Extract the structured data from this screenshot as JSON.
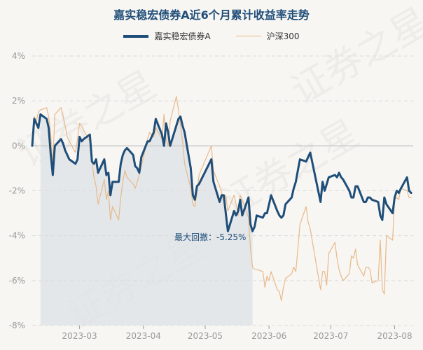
{
  "chart_data": {
    "type": "line",
    "title": "嘉实稳宏债券A近6个月累计收益率走势",
    "xlabel": "",
    "ylabel": "",
    "ylim": [
      -8,
      4
    ],
    "yticks": [
      4,
      2,
      0,
      -2,
      -4,
      -6,
      -8
    ],
    "ytick_labels": [
      "4%",
      "2%",
      "0%",
      "-2%",
      "-4%",
      "-6%",
      "-8%"
    ],
    "xlim": [
      "2023-02-06",
      "2023-08-10"
    ],
    "xticks": [
      "2023-03-01",
      "2023-04-01",
      "2023-05-01",
      "2023-06-01",
      "2023-07-01",
      "2023-08-01"
    ],
    "xtick_labels": [
      "2023-03",
      "2023-04",
      "2023-05",
      "2023-06",
      "2023-07",
      "2023-08"
    ],
    "grid": true,
    "legend_position": "top-center",
    "watermark": "证券之星",
    "series": [
      {
        "name": "嘉实稳宏债券A",
        "color": "#1f4e79",
        "points": [
          [
            "2023-02-06",
            0.0
          ],
          [
            "2023-02-07",
            1.2
          ],
          [
            "2023-02-08",
            1.0
          ],
          [
            "2023-02-09",
            0.8
          ],
          [
            "2023-02-10",
            1.4
          ],
          [
            "2023-02-13",
            1.2
          ],
          [
            "2023-02-14",
            0.8
          ],
          [
            "2023-02-15",
            -0.4
          ],
          [
            "2023-02-16",
            -1.3
          ],
          [
            "2023-02-17",
            0.0
          ],
          [
            "2023-02-20",
            0.3
          ],
          [
            "2023-02-21",
            0.1
          ],
          [
            "2023-02-22",
            -0.2
          ],
          [
            "2023-02-23",
            -0.4
          ],
          [
            "2023-02-24",
            -0.6
          ],
          [
            "2023-02-27",
            -0.8
          ],
          [
            "2023-02-28",
            -0.6
          ],
          [
            "2023-03-01",
            0.4
          ],
          [
            "2023-03-02",
            0.2
          ],
          [
            "2023-03-03",
            0.3
          ],
          [
            "2023-03-06",
            0.5
          ],
          [
            "2023-03-07",
            -0.7
          ],
          [
            "2023-03-08",
            -0.8
          ],
          [
            "2023-03-09",
            -0.6
          ],
          [
            "2023-03-10",
            -1.2
          ],
          [
            "2023-03-13",
            -0.6
          ],
          [
            "2023-03-14",
            -1.3
          ],
          [
            "2023-03-15",
            -1.2
          ],
          [
            "2023-03-16",
            -2.2
          ],
          [
            "2023-03-17",
            -1.6
          ],
          [
            "2023-03-20",
            -1.6
          ],
          [
            "2023-03-21",
            -0.8
          ],
          [
            "2023-03-22",
            -0.4
          ],
          [
            "2023-03-23",
            -0.2
          ],
          [
            "2023-03-24",
            -0.1
          ],
          [
            "2023-03-27",
            -0.4
          ],
          [
            "2023-03-28",
            -0.9
          ],
          [
            "2023-03-29",
            -1.0
          ],
          [
            "2023-03-30",
            -1.2
          ],
          [
            "2023-03-31",
            -0.5
          ],
          [
            "2023-04-03",
            0.2
          ],
          [
            "2023-04-04",
            0.2
          ],
          [
            "2023-04-06",
            0.6
          ],
          [
            "2023-04-07",
            1.2
          ],
          [
            "2023-04-10",
            0.5
          ],
          [
            "2023-04-11",
            0.0
          ],
          [
            "2023-04-12",
            1.0
          ],
          [
            "2023-04-13",
            0.6
          ],
          [
            "2023-04-14",
            0.0
          ],
          [
            "2023-04-17",
            0.9
          ],
          [
            "2023-04-18",
            1.2
          ],
          [
            "2023-04-19",
            1.3
          ],
          [
            "2023-04-20",
            0.9
          ],
          [
            "2023-04-21",
            0.6
          ],
          [
            "2023-04-24",
            -1.0
          ],
          [
            "2023-04-25",
            -2.2
          ],
          [
            "2023-04-26",
            -2.4
          ],
          [
            "2023-04-27",
            -1.8
          ],
          [
            "2023-04-28",
            -1.7
          ],
          [
            "2023-05-04",
            -0.6
          ],
          [
            "2023-05-05",
            -1.6
          ],
          [
            "2023-05-08",
            -2.5
          ],
          [
            "2023-05-09",
            -2.2
          ],
          [
            "2023-05-10",
            -2.2
          ],
          [
            "2023-05-11",
            -3.0
          ],
          [
            "2023-05-12",
            -3.8
          ],
          [
            "2023-05-15",
            -2.9
          ],
          [
            "2023-05-16",
            -3.1
          ],
          [
            "2023-05-17",
            -2.9
          ],
          [
            "2023-05-18",
            -2.4
          ],
          [
            "2023-05-19",
            -3.1
          ],
          [
            "2023-05-22",
            -2.3
          ],
          [
            "2023-05-23",
            -3.5
          ],
          [
            "2023-05-24",
            -3.8
          ],
          [
            "2023-05-25",
            -3.6
          ],
          [
            "2023-05-26",
            -3.1
          ],
          [
            "2023-05-29",
            -3.2
          ],
          [
            "2023-05-30",
            -3.0
          ],
          [
            "2023-05-31",
            -3.0
          ],
          [
            "2023-06-01",
            -2.6
          ],
          [
            "2023-06-02",
            -2.2
          ],
          [
            "2023-06-05",
            -2.9
          ],
          [
            "2023-06-06",
            -3.1
          ],
          [
            "2023-06-07",
            -3.2
          ],
          [
            "2023-06-08",
            -3.1
          ],
          [
            "2023-06-09",
            -2.6
          ],
          [
            "2023-06-12",
            -2.3
          ],
          [
            "2023-06-13",
            -1.9
          ],
          [
            "2023-06-14",
            -1.6
          ],
          [
            "2023-06-15",
            -1.1
          ],
          [
            "2023-06-16",
            -0.6
          ],
          [
            "2023-06-19",
            -0.7
          ],
          [
            "2023-06-20",
            -0.5
          ],
          [
            "2023-06-21",
            -0.3
          ],
          [
            "2023-06-26",
            -2.5
          ],
          [
            "2023-06-27",
            -1.6
          ],
          [
            "2023-06-28",
            -2.0
          ],
          [
            "2023-06-29",
            -1.7
          ],
          [
            "2023-06-30",
            -1.4
          ],
          [
            "2023-07-03",
            -1.3
          ],
          [
            "2023-07-04",
            -1.4
          ],
          [
            "2023-07-05",
            -1.2
          ],
          [
            "2023-07-06",
            -1.4
          ],
          [
            "2023-07-07",
            -1.5
          ],
          [
            "2023-07-10",
            -2.0
          ],
          [
            "2023-07-11",
            -2.3
          ],
          [
            "2023-07-12",
            -2.3
          ],
          [
            "2023-07-13",
            -1.8
          ],
          [
            "2023-07-14",
            -1.8
          ],
          [
            "2023-07-17",
            -2.5
          ],
          [
            "2023-07-18",
            -2.5
          ],
          [
            "2023-07-19",
            -2.3
          ],
          [
            "2023-07-20",
            -2.3
          ],
          [
            "2023-07-21",
            -2.4
          ],
          [
            "2023-07-24",
            -2.5
          ],
          [
            "2023-07-25",
            -3.1
          ],
          [
            "2023-07-26",
            -3.3
          ],
          [
            "2023-07-27",
            -2.3
          ],
          [
            "2023-07-28",
            -2.6
          ],
          [
            "2023-07-31",
            -3.0
          ],
          [
            "2023-08-01",
            -2.3
          ],
          [
            "2023-08-02",
            -2.0
          ],
          [
            "2023-08-03",
            -2.1
          ],
          [
            "2023-08-04",
            -1.9
          ],
          [
            "2023-08-07",
            -1.4
          ],
          [
            "2023-08-08",
            -2.0
          ],
          [
            "2023-08-09",
            -2.1
          ]
        ]
      },
      {
        "name": "沪深300",
        "color": "#e8b98a",
        "points": [
          [
            "2023-02-06",
            0.0
          ],
          [
            "2023-02-07",
            1.3
          ],
          [
            "2023-02-08",
            1.1
          ],
          [
            "2023-02-09",
            1.5
          ],
          [
            "2023-02-10",
            1.6
          ],
          [
            "2023-02-13",
            1.7
          ],
          [
            "2023-02-14",
            1.3
          ],
          [
            "2023-02-15",
            0.5
          ],
          [
            "2023-02-16",
            -0.8
          ],
          [
            "2023-02-17",
            1.4
          ],
          [
            "2023-02-20",
            1.7
          ],
          [
            "2023-02-21",
            1.3
          ],
          [
            "2023-02-22",
            0.9
          ],
          [
            "2023-02-23",
            0.4
          ],
          [
            "2023-02-24",
            0.2
          ],
          [
            "2023-02-27",
            -0.3
          ],
          [
            "2023-02-28",
            0.3
          ],
          [
            "2023-03-01",
            1.0
          ],
          [
            "2023-03-02",
            0.9
          ],
          [
            "2023-03-03",
            0.7
          ],
          [
            "2023-03-06",
            0.2
          ],
          [
            "2023-03-07",
            -0.7
          ],
          [
            "2023-03-08",
            -1.4
          ],
          [
            "2023-03-09",
            -1.8
          ],
          [
            "2023-03-10",
            -2.6
          ],
          [
            "2023-03-13",
            -1.5
          ],
          [
            "2023-03-14",
            -2.4
          ],
          [
            "2023-03-15",
            -2.0
          ],
          [
            "2023-03-16",
            -3.3
          ],
          [
            "2023-03-17",
            -2.7
          ],
          [
            "2023-03-20",
            -3.3
          ],
          [
            "2023-03-21",
            -2.3
          ],
          [
            "2023-03-22",
            -1.6
          ],
          [
            "2023-03-23",
            -1.1
          ],
          [
            "2023-03-24",
            -1.4
          ],
          [
            "2023-03-27",
            -1.7
          ],
          [
            "2023-03-28",
            -1.9
          ],
          [
            "2023-03-29",
            -1.6
          ],
          [
            "2023-03-30",
            -1.3
          ],
          [
            "2023-03-31",
            -0.9
          ],
          [
            "2023-04-03",
            0.3
          ],
          [
            "2023-04-04",
            0.6
          ],
          [
            "2023-04-06",
            0.4
          ],
          [
            "2023-04-07",
            0.8
          ],
          [
            "2023-04-10",
            0.3
          ],
          [
            "2023-04-11",
            1.4
          ],
          [
            "2023-04-12",
            0.3
          ],
          [
            "2023-04-13",
            0.0
          ],
          [
            "2023-04-14",
            1.1
          ],
          [
            "2023-04-17",
            2.2
          ],
          [
            "2023-04-18",
            1.6
          ],
          [
            "2023-04-19",
            0.9
          ],
          [
            "2023-04-20",
            0.2
          ],
          [
            "2023-04-21",
            -0.8
          ],
          [
            "2023-04-24",
            -1.9
          ],
          [
            "2023-04-25",
            -2.6
          ],
          [
            "2023-04-26",
            -2.7
          ],
          [
            "2023-04-27",
            -2.1
          ],
          [
            "2023-04-28",
            -1.3
          ],
          [
            "2023-05-04",
            0.0
          ],
          [
            "2023-05-05",
            -1.1
          ],
          [
            "2023-05-08",
            -1.8
          ],
          [
            "2023-05-09",
            -2.1
          ],
          [
            "2023-05-10",
            -2.5
          ],
          [
            "2023-05-11",
            -2.2
          ],
          [
            "2023-05-12",
            -2.9
          ],
          [
            "2023-05-15",
            -2.2
          ],
          [
            "2023-05-16",
            -2.6
          ],
          [
            "2023-05-17",
            -3.1
          ],
          [
            "2023-05-18",
            -2.2
          ],
          [
            "2023-05-19",
            -2.4
          ],
          [
            "2023-05-22",
            -3.2
          ],
          [
            "2023-05-23",
            -4.6
          ],
          [
            "2023-05-24",
            -5.4
          ],
          [
            "2023-05-25",
            -5.5
          ],
          [
            "2023-05-26",
            -5.5
          ],
          [
            "2023-05-29",
            -5.6
          ],
          [
            "2023-05-30",
            -6.3
          ],
          [
            "2023-05-31",
            -5.8
          ],
          [
            "2023-06-01",
            -6.0
          ],
          [
            "2023-06-02",
            -5.6
          ],
          [
            "2023-06-05",
            -6.4
          ],
          [
            "2023-06-06",
            -6.5
          ],
          [
            "2023-06-07",
            -6.9
          ],
          [
            "2023-06-08",
            -6.3
          ],
          [
            "2023-06-09",
            -5.9
          ],
          [
            "2023-06-12",
            -5.7
          ],
          [
            "2023-06-13",
            -5.4
          ],
          [
            "2023-06-14",
            -5.6
          ],
          [
            "2023-06-15",
            -4.6
          ],
          [
            "2023-06-16",
            -3.5
          ],
          [
            "2023-06-19",
            -2.7
          ],
          [
            "2023-06-20",
            -3.4
          ],
          [
            "2023-06-21",
            -3.7
          ],
          [
            "2023-06-26",
            -6.4
          ],
          [
            "2023-06-27",
            -5.6
          ],
          [
            "2023-06-28",
            -5.6
          ],
          [
            "2023-06-29",
            -6.2
          ],
          [
            "2023-06-30",
            -4.8
          ],
          [
            "2023-07-03",
            -4.3
          ],
          [
            "2023-07-04",
            -5.0
          ],
          [
            "2023-07-05",
            -5.5
          ],
          [
            "2023-07-06",
            -5.8
          ],
          [
            "2023-07-07",
            -6.0
          ],
          [
            "2023-07-10",
            -5.7
          ],
          [
            "2023-07-11",
            -4.9
          ],
          [
            "2023-07-12",
            -5.0
          ],
          [
            "2023-07-13",
            -4.6
          ],
          [
            "2023-07-14",
            -5.3
          ],
          [
            "2023-07-17",
            -5.8
          ],
          [
            "2023-07-18",
            -5.4
          ],
          [
            "2023-07-19",
            -5.4
          ],
          [
            "2023-07-20",
            -5.5
          ],
          [
            "2023-07-21",
            -6.1
          ],
          [
            "2023-07-24",
            -6.0
          ],
          [
            "2023-07-25",
            -4.2
          ],
          [
            "2023-07-26",
            -6.4
          ],
          [
            "2023-07-27",
            -6.6
          ],
          [
            "2023-07-28",
            -4.0
          ],
          [
            "2023-07-31",
            -4.2
          ],
          [
            "2023-08-01",
            -2.4
          ],
          [
            "2023-08-02",
            -2.3
          ],
          [
            "2023-08-03",
            -2.4
          ],
          [
            "2023-08-04",
            -1.9
          ],
          [
            "2023-08-07",
            -2.0
          ],
          [
            "2023-08-08",
            -2.3
          ],
          [
            "2023-08-09",
            -2.3
          ]
        ]
      }
    ],
    "annotations": [
      {
        "text": "最大回撤：-5.25%",
        "shaded_range": [
          "2023-02-10",
          "2023-05-24"
        ],
        "shade_color": "#dfe4e8"
      }
    ]
  }
}
